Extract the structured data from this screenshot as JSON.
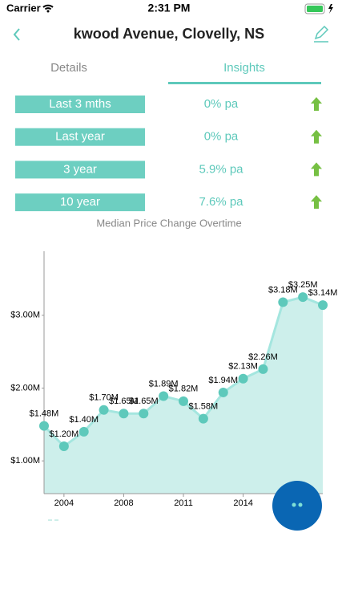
{
  "status_bar": {
    "carrier": "Carrier",
    "time": "2:31 PM"
  },
  "header": {
    "title": "kwood Avenue, Clovelly, NS"
  },
  "tabs": [
    "Details",
    "Insights"
  ],
  "stats": [
    {
      "label": "Last 3 mths",
      "value": "0% pa"
    },
    {
      "label": "Last year",
      "value": "0% pa"
    },
    {
      "label": "3 year",
      "value": "5.9% pa"
    },
    {
      "label": "10 year",
      "value": "7.6% pa"
    }
  ],
  "chart_data": {
    "type": "area",
    "title": "Median Price Change Overtime",
    "categories": [
      null,
      "2004",
      null,
      null,
      "2008",
      null,
      null,
      "2011",
      null,
      null,
      "2014",
      null,
      null,
      null,
      null
    ],
    "values": [
      1.48,
      1.2,
      1.4,
      1.7,
      1.65,
      1.65,
      1.89,
      1.82,
      1.58,
      1.94,
      2.13,
      2.26,
      3.18,
      3.25,
      3.14
    ],
    "value_labels": [
      "$1.48M",
      "$1.20M",
      "$1.40M",
      "$1.70M",
      "$1.65M",
      "$1.65M",
      "$1.89M",
      "$1.82M",
      "$1.58M",
      "$1.94M",
      "$2.13M",
      "$2.26M",
      "$3.18M",
      "$3.25M",
      "$3.14M"
    ],
    "ylim": [
      0.55,
      3.88
    ],
    "yticks": [
      {
        "value": 1,
        "label": "$1.00M"
      },
      {
        "value": 2,
        "label": "$2.00M"
      },
      {
        "value": 3,
        "label": "$3.00M"
      }
    ],
    "color": "#5ec9bb",
    "line_color": "#a4e6df",
    "fill_color": "#cdefeb"
  }
}
